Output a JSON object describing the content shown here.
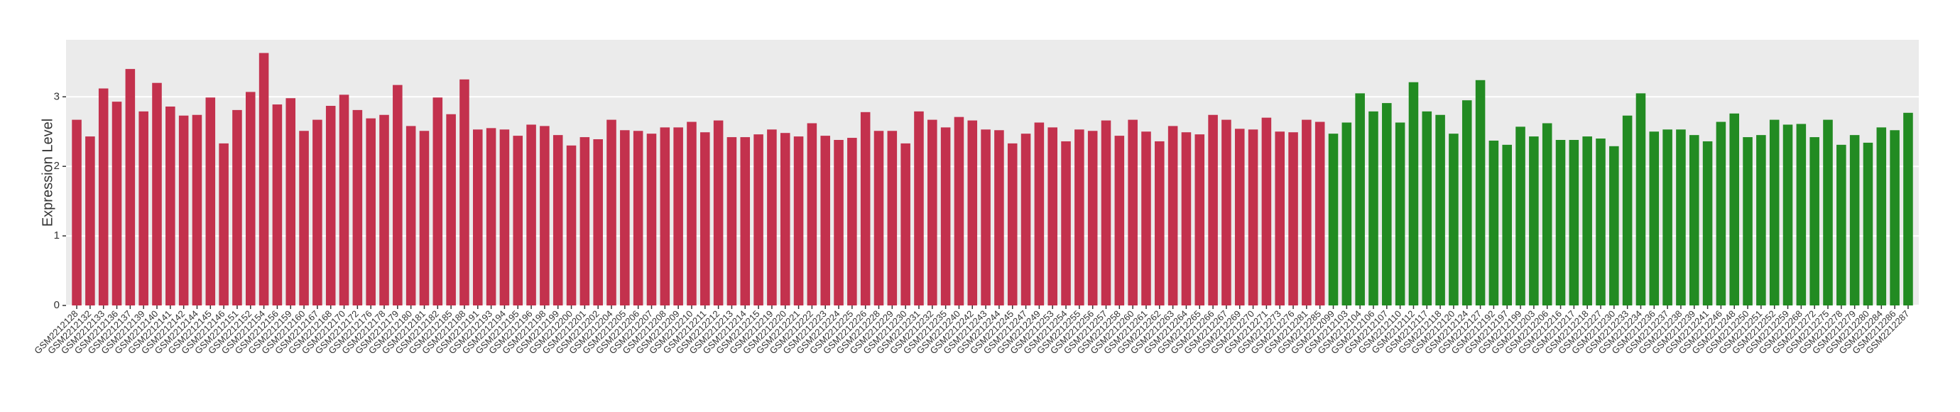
{
  "chart_data": {
    "type": "bar",
    "y_label": "Expression Level",
    "ylim": [
      0,
      3.82
    ],
    "yticks": [
      0,
      1,
      2,
      3
    ],
    "grid": true,
    "groups": [
      {
        "color": "#c3314d",
        "categories": [
          "GSM2212128",
          "GSM2212132",
          "GSM2212133",
          "GSM2212136",
          "GSM2212137",
          "GSM2212139",
          "GSM2212140",
          "GSM2212141",
          "GSM2212142",
          "GSM2212144",
          "GSM2212145",
          "GSM2212146",
          "GSM2212151",
          "GSM2212152",
          "GSM2212154",
          "GSM2212156",
          "GSM2212159",
          "GSM2212160",
          "GSM2212167",
          "GSM2212168",
          "GSM2212170",
          "GSM2212172",
          "GSM2212176",
          "GSM2212178",
          "GSM2212179",
          "GSM2212180",
          "GSM2212181",
          "GSM2212182",
          "GSM2212185",
          "GSM2212188",
          "GSM2212191",
          "GSM2212193",
          "GSM2212194",
          "GSM2212195",
          "GSM2212196",
          "GSM2212198",
          "GSM2212199",
          "GSM2212200",
          "GSM2212201",
          "GSM2212202",
          "GSM2212204",
          "GSM2212205",
          "GSM2212206",
          "GSM2212207",
          "GSM2212208",
          "GSM2212209",
          "GSM2212210",
          "GSM2212211",
          "GSM2212212",
          "GSM2212213",
          "GSM2212214",
          "GSM2212215",
          "GSM2212219",
          "GSM2212220",
          "GSM2212221",
          "GSM2212222",
          "GSM2212223",
          "GSM2212224",
          "GSM2212225",
          "GSM2212226",
          "GSM2212228",
          "GSM2212229",
          "GSM2212230",
          "GSM2212231",
          "GSM2212232",
          "GSM2212235",
          "GSM2212240",
          "GSM2212242",
          "GSM2212243",
          "GSM2212244",
          "GSM2212245",
          "GSM2212247",
          "GSM2212249",
          "GSM2212253",
          "GSM2212254",
          "GSM2212255",
          "GSM2212256",
          "GSM2212257",
          "GSM2212258",
          "GSM2212260",
          "GSM2212261",
          "GSM2212262",
          "GSM2212263",
          "GSM2212264",
          "GSM2212265",
          "GSM2212266",
          "GSM2212267",
          "GSM2212269",
          "GSM2212270",
          "GSM2212271",
          "GSM2212273",
          "GSM2212276",
          "GSM2212281",
          "GSM2212285"
        ],
        "values": [
          2.67,
          2.43,
          3.12,
          2.93,
          3.4,
          2.79,
          3.2,
          2.86,
          2.73,
          2.74,
          2.99,
          2.33,
          2.81,
          3.07,
          3.63,
          2.89,
          2.98,
          2.51,
          2.67,
          2.87,
          3.03,
          2.81,
          2.69,
          2.74,
          3.17,
          2.58,
          2.51,
          2.99,
          2.75,
          3.25,
          2.53,
          2.55,
          2.53,
          2.44,
          2.6,
          2.58,
          2.45,
          2.3,
          2.42,
          2.39,
          2.67,
          2.52,
          2.51,
          2.47,
          2.56,
          2.56,
          2.64,
          2.49,
          2.66,
          2.42,
          2.42,
          2.46,
          2.53,
          2.48,
          2.43,
          2.62,
          2.44,
          2.38,
          2.41,
          2.78,
          2.51,
          2.51,
          2.33,
          2.79,
          2.67,
          2.56,
          2.71,
          2.66,
          2.53,
          2.52,
          2.33,
          2.47,
          2.63,
          2.56,
          2.36,
          2.53,
          2.51,
          2.66,
          2.44,
          2.67,
          2.5,
          2.36,
          2.58,
          2.49,
          2.46,
          2.74,
          2.67,
          2.54,
          2.53,
          2.7,
          2.5,
          2.49,
          2.67,
          2.64
        ]
      },
      {
        "color": "#228b22",
        "categories": [
          "GSM2212099",
          "GSM2212103",
          "GSM2212104",
          "GSM2212106",
          "GSM2212107",
          "GSM2212110",
          "GSM2212112",
          "GSM2212117",
          "GSM2212118",
          "GSM2212120",
          "GSM2212124",
          "GSM2212127",
          "GSM2212192",
          "GSM2212197",
          "GSM2212199",
          "GSM2212203",
          "GSM2212206",
          "GSM2212216",
          "GSM2212217",
          "GSM2212218",
          "GSM2212227",
          "GSM2212230",
          "GSM2212233",
          "GSM2212234",
          "GSM2212236",
          "GSM2212237",
          "GSM2212238",
          "GSM2212239",
          "GSM2212241",
          "GSM2212246",
          "GSM2212248",
          "GSM2212250",
          "GSM2212251",
          "GSM2212252",
          "GSM2212259",
          "GSM2212268",
          "GSM2212272",
          "GSM2212275",
          "GSM2212278",
          "GSM2212279",
          "GSM2212280",
          "GSM2212284",
          "GSM2212286",
          "GSM2212287"
        ],
        "values": [
          2.47,
          2.63,
          3.05,
          2.79,
          2.91,
          2.63,
          3.21,
          2.79,
          2.74,
          2.47,
          2.95,
          3.24,
          2.37,
          2.31,
          2.57,
          2.43,
          2.62,
          2.38,
          2.38,
          2.43,
          2.4,
          2.29,
          2.73,
          3.05,
          2.5,
          2.53,
          2.53,
          2.45,
          2.36,
          2.64,
          2.76,
          2.42,
          2.45,
          2.67,
          2.6,
          2.61,
          2.42,
          2.67,
          2.31,
          2.45,
          2.34,
          2.56,
          2.52,
          2.77
        ]
      }
    ]
  }
}
